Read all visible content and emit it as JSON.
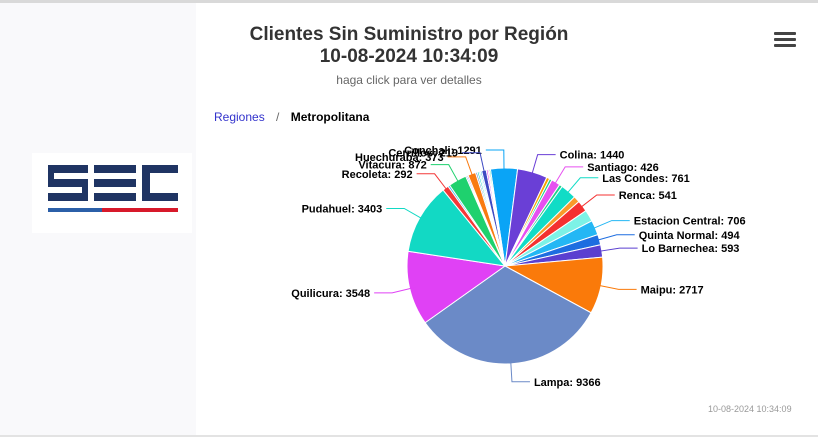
{
  "header": {
    "title_line1": "Clientes Sin Suministro por Región",
    "title_line2": "10-08-2024 10:34:09",
    "subtitle": "haga click para ver detalles"
  },
  "breadcrumb": {
    "root": "Regiones",
    "separator": "/",
    "current": "Metropolitana"
  },
  "menu": {
    "icon": "hamburger-menu-icon"
  },
  "logo": {
    "text": "SEC",
    "colors": [
      "#1f3463",
      "#2b5fa8",
      "#d7192a"
    ]
  },
  "footer": {
    "timestamp": "10-08-2024 10:34:09"
  },
  "chart_data": {
    "type": "pie",
    "slices": [
      {
        "name": "Conchali",
        "value": 1291,
        "color": "#0aa4f6",
        "label": true
      },
      {
        "name": "Colina",
        "value": 1440,
        "color": "#6a3fd6",
        "label": true
      },
      {
        "name": "",
        "value": 150,
        "color": "#f7a300",
        "label": false
      },
      {
        "name": "",
        "value": 120,
        "color": "#1fd18a",
        "label": false
      },
      {
        "name": "Santiago",
        "value": 426,
        "color": "#e650f0",
        "label": true
      },
      {
        "name": "",
        "value": 150,
        "color": "#1fd18a",
        "label": false
      },
      {
        "name": "Las Condes",
        "value": 761,
        "color": "#10dcc6",
        "label": true
      },
      {
        "name": "",
        "value": 300,
        "color": "#f99a2a",
        "label": false
      },
      {
        "name": "Renca",
        "value": 541,
        "color": "#f43030",
        "label": true
      },
      {
        "name": "",
        "value": 560,
        "color": "#7df2e6",
        "label": false
      },
      {
        "name": "Estacion Central",
        "value": 706,
        "color": "#24b7f4",
        "label": true
      },
      {
        "name": "Quinta Normal",
        "value": 494,
        "color": "#1d6de0",
        "label": true
      },
      {
        "name": "Lo Barnechea",
        "value": 593,
        "color": "#5a3fd0",
        "label": true
      },
      {
        "name": "Maipu",
        "value": 2717,
        "color": "#fa7a0a",
        "label": true
      },
      {
        "name": "Lampa",
        "value": 9366,
        "color": "#6b8ac7",
        "label": true
      },
      {
        "name": "Quilicura",
        "value": 3548,
        "color": "#e041f5",
        "label": true
      },
      {
        "name": "Pudahuel",
        "value": 3403,
        "color": "#12d9c4",
        "label": true
      },
      {
        "name": "Recoleta",
        "value": 292,
        "color": "#f43838",
        "label": true
      },
      {
        "name": "",
        "value": 90,
        "color": "#2ab5ef",
        "label": false
      },
      {
        "name": "Vitacura",
        "value": 872,
        "color": "#1fd16e",
        "label": true
      },
      {
        "name": "",
        "value": 60,
        "color": "#2d5fd1",
        "label": false
      },
      {
        "name": "",
        "value": 60,
        "color": "#5a2fcc",
        "label": false
      },
      {
        "name": "Huechuraba",
        "value": 373,
        "color": "#f97a10",
        "label": true
      },
      {
        "name": "",
        "value": 80,
        "color": "#6b8ac7",
        "label": false
      },
      {
        "name": "",
        "value": 80,
        "color": "#16d7c6",
        "label": false
      },
      {
        "name": "",
        "value": 70,
        "color": "#a7e0f5",
        "label": false
      },
      {
        "name": "",
        "value": 70,
        "color": "#2ab5ef",
        "label": false
      },
      {
        "name": "Cerrillos",
        "value": 219,
        "color": "#3d49c2",
        "label": true
      },
      {
        "name": "",
        "value": 80,
        "color": "#e650f0",
        "label": false
      },
      {
        "name": "",
        "value": 60,
        "color": "#ff5fa8",
        "label": false
      },
      {
        "name": "",
        "value": 60,
        "color": "#1fd18a",
        "label": false
      }
    ]
  }
}
